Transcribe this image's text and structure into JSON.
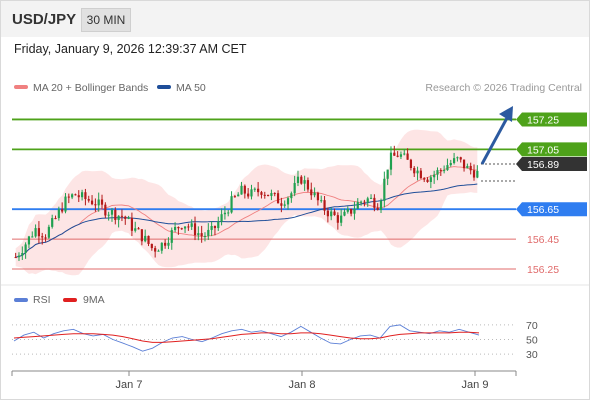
{
  "header": {
    "symbol": "USD/JPY",
    "timeframe": "30 MIN",
    "datetime": "Friday, January 9, 2026 12:39:37 AM CET"
  },
  "main_chart": {
    "legend": [
      {
        "label": "MA 20 + Bollinger Bands",
        "color": "#f08080"
      },
      {
        "label": "MA 50",
        "color": "#1f4e99"
      }
    ],
    "credit": "Research © 2026 Trading Central",
    "price_range": [
      156.17,
      157.4
    ],
    "current_price": "156.89",
    "levels": [
      {
        "value": 157.25,
        "label": "157.25",
        "color": "#4ea21a",
        "style": "filled"
      },
      {
        "value": 157.05,
        "label": "157.05",
        "color": "#4ea21a",
        "style": "filled"
      },
      {
        "value": 156.65,
        "label": "156.65",
        "color": "#2f7df0",
        "style": "filled"
      },
      {
        "value": 156.45,
        "label": "156.45",
        "color": "#e06b6b",
        "style": "text"
      },
      {
        "value": 156.25,
        "label": "156.25",
        "color": "#e06b6b",
        "style": "text"
      }
    ]
  },
  "rsi_panel": {
    "legend": [
      {
        "label": "RSI",
        "color": "#5b7fd6"
      },
      {
        "label": "9MA",
        "color": "#e02020"
      }
    ],
    "levels": [
      "70",
      "50",
      "30"
    ]
  },
  "x_axis": {
    "labels": [
      "Jan 7",
      "Jan 8",
      "Jan 9"
    ]
  },
  "colors": {
    "up": "#20a050",
    "down": "#b41919",
    "bollinger_fill": "#fde0e0",
    "ma20": "#f08080",
    "ma50": "#1f4e99",
    "forecast_arrow": "#2c5aa0"
  },
  "chart_data": {
    "type": "candlestick",
    "title": "USD/JPY 30 MIN",
    "ylim": [
      156.17,
      157.4
    ],
    "x_labels": [
      "Jan 7",
      "Jan 8",
      "Jan 9"
    ],
    "key_levels": [
      157.25,
      157.05,
      156.89,
      156.65,
      156.45,
      156.25
    ],
    "close_path": [
      156.33,
      156.42,
      156.52,
      156.48,
      156.58,
      156.7,
      156.75,
      156.72,
      156.7,
      156.65,
      156.62,
      156.6,
      156.52,
      156.46,
      156.38,
      156.42,
      156.5,
      156.56,
      156.52,
      156.47,
      156.5,
      156.6,
      156.7,
      156.77,
      156.75,
      156.78,
      156.74,
      156.7,
      156.75,
      156.86,
      156.78,
      156.68,
      156.62,
      156.58,
      156.63,
      156.7,
      156.72,
      156.68,
      156.98,
      157.02,
      156.96,
      156.9,
      156.86,
      156.9,
      156.95,
      156.98,
      156.92,
      156.89
    ],
    "series": [
      {
        "name": "RSI",
        "values": [
          48,
          56,
          60,
          52,
          58,
          62,
          64,
          58,
          55,
          57,
          50,
          45,
          40,
          34,
          38,
          46,
          52,
          54,
          50,
          47,
          52,
          58,
          62,
          64,
          60,
          62,
          58,
          54,
          60,
          68,
          60,
          52,
          45,
          44,
          50,
          55,
          56,
          52,
          68,
          70,
          62,
          60,
          58,
          62,
          60,
          64,
          60,
          56
        ]
      },
      {
        "name": "9MA",
        "values": [
          52,
          53,
          54,
          55,
          56,
          57,
          58,
          58,
          58,
          57,
          56,
          54,
          51,
          48,
          46,
          46,
          47,
          48,
          49,
          50,
          51,
          53,
          55,
          57,
          58,
          59,
          59,
          58,
          58,
          59,
          59,
          58,
          56,
          54,
          52,
          51,
          51,
          52,
          55,
          57,
          58,
          59,
          59,
          59,
          59,
          60,
          60,
          59
        ]
      }
    ]
  }
}
